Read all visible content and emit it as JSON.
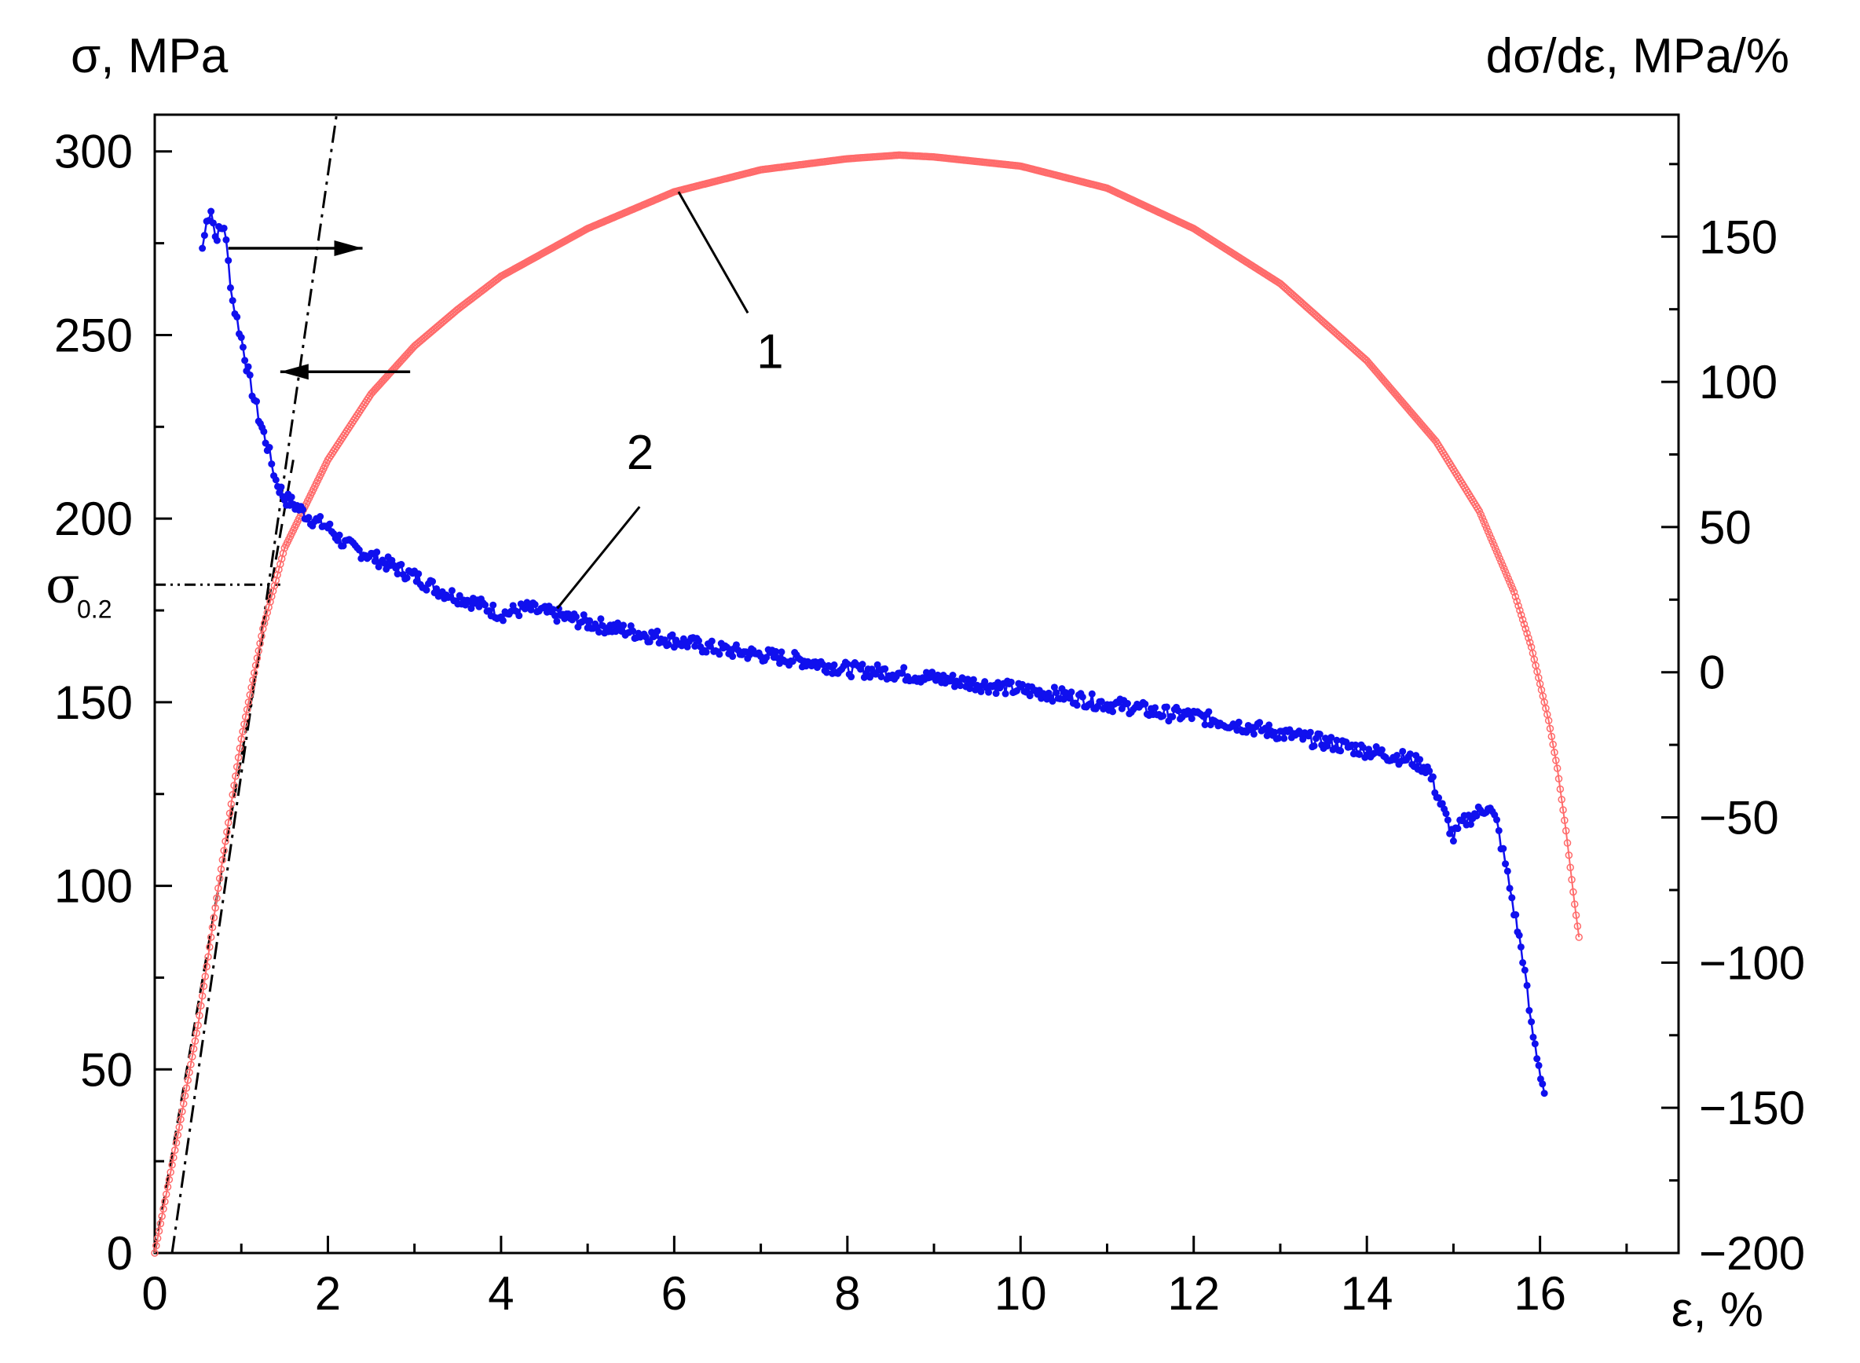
{
  "chart_data": {
    "type": "scatter",
    "x_axis": {
      "label": "ε, %",
      "range": [
        0,
        17.6
      ],
      "ticks": [
        0,
        2,
        4,
        6,
        8,
        10,
        12,
        14,
        16
      ],
      "tick_labels": [
        "0",
        "2",
        "4",
        "6",
        "8",
        "10",
        "12",
        "14",
        "16"
      ]
    },
    "y_axis_left": {
      "label": "σ, MPa",
      "range": [
        0,
        310
      ],
      "ticks": [
        0,
        50,
        100,
        150,
        200,
        250,
        300
      ],
      "tick_labels": [
        "0",
        "50",
        "100",
        "150",
        "200",
        "250",
        "300"
      ]
    },
    "y_axis_right": {
      "label": "dσ/dε, MPa/%",
      "range": [
        -200,
        192
      ],
      "ticks": [
        -200,
        -150,
        -100,
        -50,
        0,
        50,
        100,
        150
      ],
      "tick_labels": [
        "−200",
        "−150",
        "−100",
        "−50",
        "0",
        "50",
        "100",
        "150"
      ]
    },
    "grid": false,
    "series": [
      {
        "label": "1",
        "axis": "left",
        "color": "#ff6b6b",
        "marker": "open-circle",
        "points": [
          [
            0,
            0
          ],
          [
            0.25,
            30
          ],
          [
            0.5,
            62
          ],
          [
            0.75,
            102
          ],
          [
            1.0,
            140
          ],
          [
            1.25,
            170
          ],
          [
            1.5,
            192
          ],
          [
            2.0,
            216
          ],
          [
            2.5,
            234
          ],
          [
            3.0,
            247
          ],
          [
            3.5,
            257
          ],
          [
            4.0,
            266
          ],
          [
            5.0,
            279
          ],
          [
            6.0,
            289
          ],
          [
            7.0,
            295
          ],
          [
            8.0,
            298
          ],
          [
            8.6,
            299
          ],
          [
            9.0,
            298.5
          ],
          [
            10.0,
            296
          ],
          [
            11.0,
            290
          ],
          [
            12.0,
            279
          ],
          [
            13.0,
            264
          ],
          [
            14.0,
            243
          ],
          [
            14.8,
            221
          ],
          [
            15.3,
            202
          ],
          [
            15.7,
            180
          ],
          [
            15.9,
            165
          ],
          [
            16.1,
            145
          ],
          [
            16.2,
            132
          ],
          [
            16.3,
            115
          ],
          [
            16.4,
            95
          ],
          [
            16.45,
            86
          ]
        ]
      },
      {
        "label": "2",
        "axis": "right",
        "color": "#1010ee",
        "marker": "filled-circle",
        "points": [
          [
            0.55,
            146
          ],
          [
            0.6,
            155
          ],
          [
            0.65,
            160
          ],
          [
            0.7,
            150
          ],
          [
            0.8,
            154
          ],
          [
            0.9,
            128
          ],
          [
            1.0,
            115
          ],
          [
            1.1,
            100
          ],
          [
            1.2,
            88
          ],
          [
            1.3,
            78
          ],
          [
            1.4,
            66
          ],
          [
            1.5,
            60
          ],
          [
            1.6,
            58
          ],
          [
            1.8,
            53
          ],
          [
            2.0,
            50
          ],
          [
            2.2,
            44
          ],
          [
            2.5,
            40
          ],
          [
            3.0,
            33
          ],
          [
            3.3,
            28
          ],
          [
            3.7,
            24
          ],
          [
            4.0,
            20
          ],
          [
            4.3,
            22
          ],
          [
            4.6,
            20
          ],
          [
            5.0,
            17
          ],
          [
            5.5,
            14
          ],
          [
            6.0,
            11
          ],
          [
            6.5,
            8
          ],
          [
            7.0,
            6
          ],
          [
            7.5,
            4
          ],
          [
            8.0,
            1
          ],
          [
            8.5,
            0
          ],
          [
            9.0,
            -2
          ],
          [
            9.5,
            -4
          ],
          [
            10.0,
            -6
          ],
          [
            10.5,
            -8
          ],
          [
            11.0,
            -11
          ],
          [
            11.3,
            -12
          ],
          [
            11.6,
            -14
          ],
          [
            12.0,
            -15
          ],
          [
            12.5,
            -18
          ],
          [
            13.0,
            -21
          ],
          [
            13.5,
            -24
          ],
          [
            14.0,
            -27
          ],
          [
            14.5,
            -30
          ],
          [
            14.7,
            -33
          ],
          [
            14.85,
            -45
          ],
          [
            15.0,
            -57
          ],
          [
            15.1,
            -52
          ],
          [
            15.2,
            -50
          ],
          [
            15.4,
            -46
          ],
          [
            15.5,
            -52
          ],
          [
            15.6,
            -66
          ],
          [
            15.7,
            -82
          ],
          [
            15.8,
            -98
          ],
          [
            15.9,
            -122
          ],
          [
            16.05,
            -145
          ]
        ]
      }
    ],
    "annotations": [
      {
        "text": "σ",
        "subscript": "0.2",
        "y_value": 182,
        "axis": "left"
      },
      {
        "text": "1",
        "target_series": "1"
      },
      {
        "text": "2",
        "target_series": "2"
      }
    ],
    "reference_lines": [
      {
        "style": "dash-dot",
        "from": [
          0.2,
          0
        ],
        "to": [
          2.1,
          310
        ]
      },
      {
        "style": "dashed",
        "from": [
          0,
          0
        ],
        "to": [
          1.6,
          216
        ]
      },
      {
        "style": "dash-dot-dot",
        "from": [
          0,
          182
        ],
        "to": [
          1.45,
          182
        ]
      }
    ]
  }
}
